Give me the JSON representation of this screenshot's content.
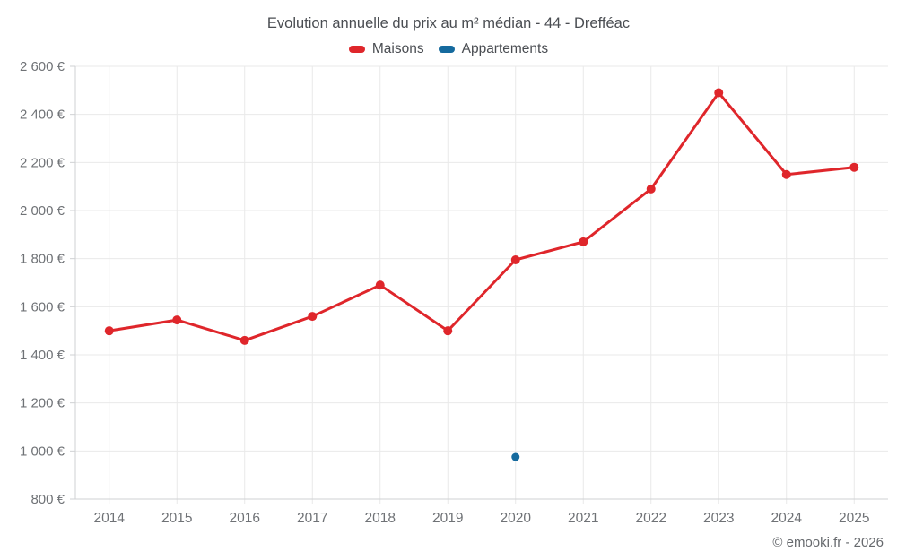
{
  "chart_data": {
    "type": "line",
    "title": "Evolution annuelle du prix au m² médian - 44 - Drefféac",
    "footer": "© emooki.fr - 2026",
    "categories": [
      "2014",
      "2015",
      "2016",
      "2017",
      "2018",
      "2019",
      "2020",
      "2021",
      "2022",
      "2023",
      "2024",
      "2025"
    ],
    "series": [
      {
        "name": "Maisons",
        "color": "#df262b",
        "point_radius": 5,
        "values": [
          1500,
          1545,
          1460,
          1560,
          1690,
          1500,
          1795,
          1870,
          2090,
          2490,
          2150,
          2180
        ]
      },
      {
        "name": "Appartements",
        "color": "#156a9e",
        "point_radius": 4.5,
        "values": [
          null,
          null,
          null,
          null,
          null,
          null,
          975,
          null,
          null,
          null,
          null,
          null
        ]
      }
    ],
    "ylim": [
      800,
      2600
    ],
    "y_ticks": [
      {
        "value": 800,
        "label": "800 €"
      },
      {
        "value": 1000,
        "label": "1 000 €"
      },
      {
        "value": 1200,
        "label": "1 200 €"
      },
      {
        "value": 1400,
        "label": "1 400 €"
      },
      {
        "value": 1600,
        "label": "1 600 €"
      },
      {
        "value": 1800,
        "label": "1 800 €"
      },
      {
        "value": 2000,
        "label": "2 000 €"
      },
      {
        "value": 2200,
        "label": "2 200 €"
      },
      {
        "value": 2400,
        "label": "2 400 €"
      },
      {
        "value": 2600,
        "label": "2 600 €"
      }
    ],
    "grid": true,
    "legend_position": "top",
    "colors": {
      "grid": "#e9e9e9",
      "axis": "#cfd1d3",
      "title_text": "#4a4d52",
      "tick_text": "#6f7276",
      "footer_text": "#66696d"
    }
  }
}
